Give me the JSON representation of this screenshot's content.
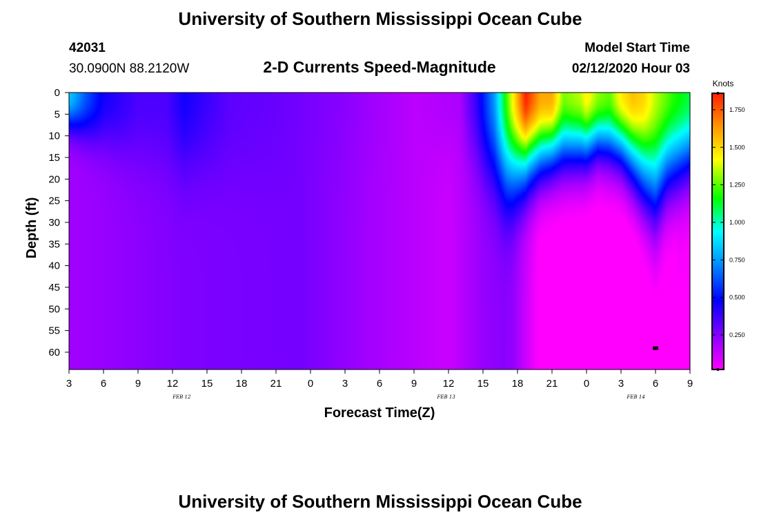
{
  "header": {
    "title": "University of Southern Mississippi Ocean Cube",
    "station_id": "42031",
    "location": "30.0900N 88.2120W",
    "subtitle": "2-D Currents Speed-Magnitude",
    "model_start_label": "Model Start Time",
    "model_start_value": "02/12/2020 Hour 03"
  },
  "footer": {
    "title": "University of Southern Mississippi Ocean Cube"
  },
  "chart_data": {
    "type": "heatmap",
    "title": "2-D Currents Speed-Magnitude",
    "xlabel": "Forecast Time(Z)",
    "ylabel": "Depth (ft)",
    "colorbar_label": "Knots",
    "x_tick_labels": [
      "3",
      "6",
      "9",
      "12",
      "15",
      "18",
      "21",
      "0",
      "3",
      "6",
      "9",
      "12",
      "15",
      "18",
      "21",
      "0",
      "3",
      "6",
      "9"
    ],
    "x_range_hours_from_start": [
      0,
      54
    ],
    "date_labels": [
      {
        "text": "FEB 12",
        "hour": 9.8
      },
      {
        "text": "FEB 13",
        "hour": 32.8
      },
      {
        "text": "FEB 14",
        "hour": 49.3
      }
    ],
    "y_ticks": [
      0,
      5,
      10,
      15,
      20,
      25,
      30,
      35,
      40,
      45,
      50,
      55,
      60
    ],
    "ylim": [
      0,
      64
    ],
    "y_inverted": true,
    "colorbar_ticks": [
      1.75,
      1.5,
      1.25,
      1.0,
      0.75,
      0.5,
      0.25
    ],
    "colorbar_tick_labels": [
      "1.750",
      "1.500",
      "1.250",
      "1.000",
      "0.750",
      "0.500",
      "0.250"
    ],
    "colorbar_range": [
      0.02,
      1.86
    ],
    "colors": {
      "scale": [
        "#ff00ff",
        "#a000ff",
        "#0000ff",
        "#0096ff",
        "#00ffff",
        "#00ff00",
        "#ffff00",
        "#ff9600",
        "#ff1e00"
      ]
    },
    "marker": {
      "hour": 51,
      "depth": 59
    }
  }
}
